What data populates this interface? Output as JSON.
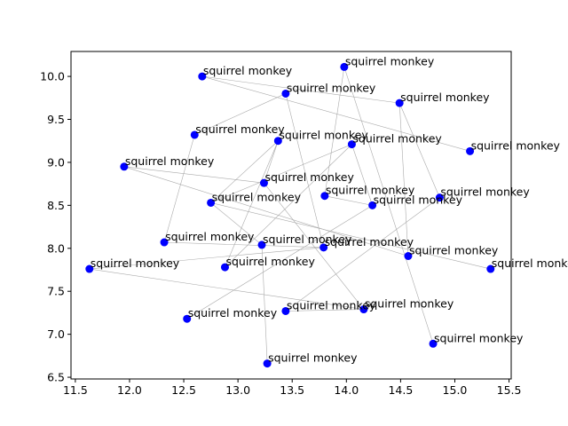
{
  "chart_data": {
    "type": "scatter",
    "title": "",
    "xlabel": "",
    "ylabel": "",
    "xlim": [
      11.46,
      15.52
    ],
    "ylim": [
      6.48,
      10.29
    ],
    "x_ticks": [
      11.5,
      12.0,
      12.5,
      13.0,
      13.5,
      14.0,
      14.5,
      15.0,
      15.5
    ],
    "y_ticks": [
      6.5,
      7.0,
      7.5,
      8.0,
      8.5,
      9.0,
      9.5,
      10.0
    ],
    "grid": false,
    "legend": "none",
    "point_color": "#0000ff",
    "edge_color": "#aaaaaa",
    "points": [
      {
        "x": 12.67,
        "y": 10.0,
        "label": "squirrel monkey"
      },
      {
        "x": 13.98,
        "y": 10.11,
        "label": "squirrel monkey"
      },
      {
        "x": 13.44,
        "y": 9.8,
        "label": "squirrel monkey"
      },
      {
        "x": 14.49,
        "y": 9.69,
        "label": "squirrel monkey"
      },
      {
        "x": 12.6,
        "y": 9.32,
        "label": "squirrel monkey"
      },
      {
        "x": 13.37,
        "y": 9.25,
        "label": "squirrel monkey"
      },
      {
        "x": 14.05,
        "y": 9.21,
        "label": "squirrel monkey"
      },
      {
        "x": 15.14,
        "y": 9.13,
        "label": "squirrel monkey"
      },
      {
        "x": 11.95,
        "y": 8.95,
        "label": "squirrel monkey"
      },
      {
        "x": 13.24,
        "y": 8.76,
        "label": "squirrel monkey"
      },
      {
        "x": 13.8,
        "y": 8.61,
        "label": "squirrel monkey"
      },
      {
        "x": 14.86,
        "y": 8.59,
        "label": "squirrel monkey"
      },
      {
        "x": 12.75,
        "y": 8.53,
        "label": "squirrel monkey"
      },
      {
        "x": 14.24,
        "y": 8.5,
        "label": "squirrel monkey"
      },
      {
        "x": 12.32,
        "y": 8.07,
        "label": "squirrel monkey"
      },
      {
        "x": 13.22,
        "y": 8.04,
        "label": "squirrel monkey"
      },
      {
        "x": 13.79,
        "y": 8.01,
        "label": "squirrel monkey"
      },
      {
        "x": 14.57,
        "y": 7.91,
        "label": "squirrel monkey"
      },
      {
        "x": 11.63,
        "y": 7.76,
        "label": "squirrel monkey"
      },
      {
        "x": 12.88,
        "y": 7.78,
        "label": "squirrel monkey"
      },
      {
        "x": 15.33,
        "y": 7.76,
        "label": "squirrel monkey"
      },
      {
        "x": 13.44,
        "y": 7.27,
        "label": "squirrel monkey"
      },
      {
        "x": 14.16,
        "y": 7.29,
        "label": "squirrel monkey"
      },
      {
        "x": 12.53,
        "y": 7.18,
        "label": "squirrel monkey"
      },
      {
        "x": 14.8,
        "y": 6.89,
        "label": "squirrel monkey"
      },
      {
        "x": 13.27,
        "y": 6.66,
        "label": "squirrel monkey"
      }
    ],
    "edges": [
      [
        0,
        7
      ],
      [
        0,
        3
      ],
      [
        1,
        10
      ],
      [
        1,
        24
      ],
      [
        2,
        4
      ],
      [
        2,
        16
      ],
      [
        3,
        17
      ],
      [
        3,
        11
      ],
      [
        4,
        14
      ],
      [
        5,
        12
      ],
      [
        5,
        19
      ],
      [
        6,
        13
      ],
      [
        6,
        12
      ],
      [
        8,
        9
      ],
      [
        8,
        17
      ],
      [
        9,
        5
      ],
      [
        9,
        22
      ],
      [
        10,
        13
      ],
      [
        11,
        21
      ],
      [
        12,
        15
      ],
      [
        12,
        20
      ],
      [
        13,
        23
      ],
      [
        14,
        16
      ],
      [
        15,
        25
      ],
      [
        16,
        18
      ],
      [
        18,
        22
      ],
      [
        19,
        6
      ],
      [
        21,
        22
      ],
      [
        2,
        2
      ]
    ]
  }
}
